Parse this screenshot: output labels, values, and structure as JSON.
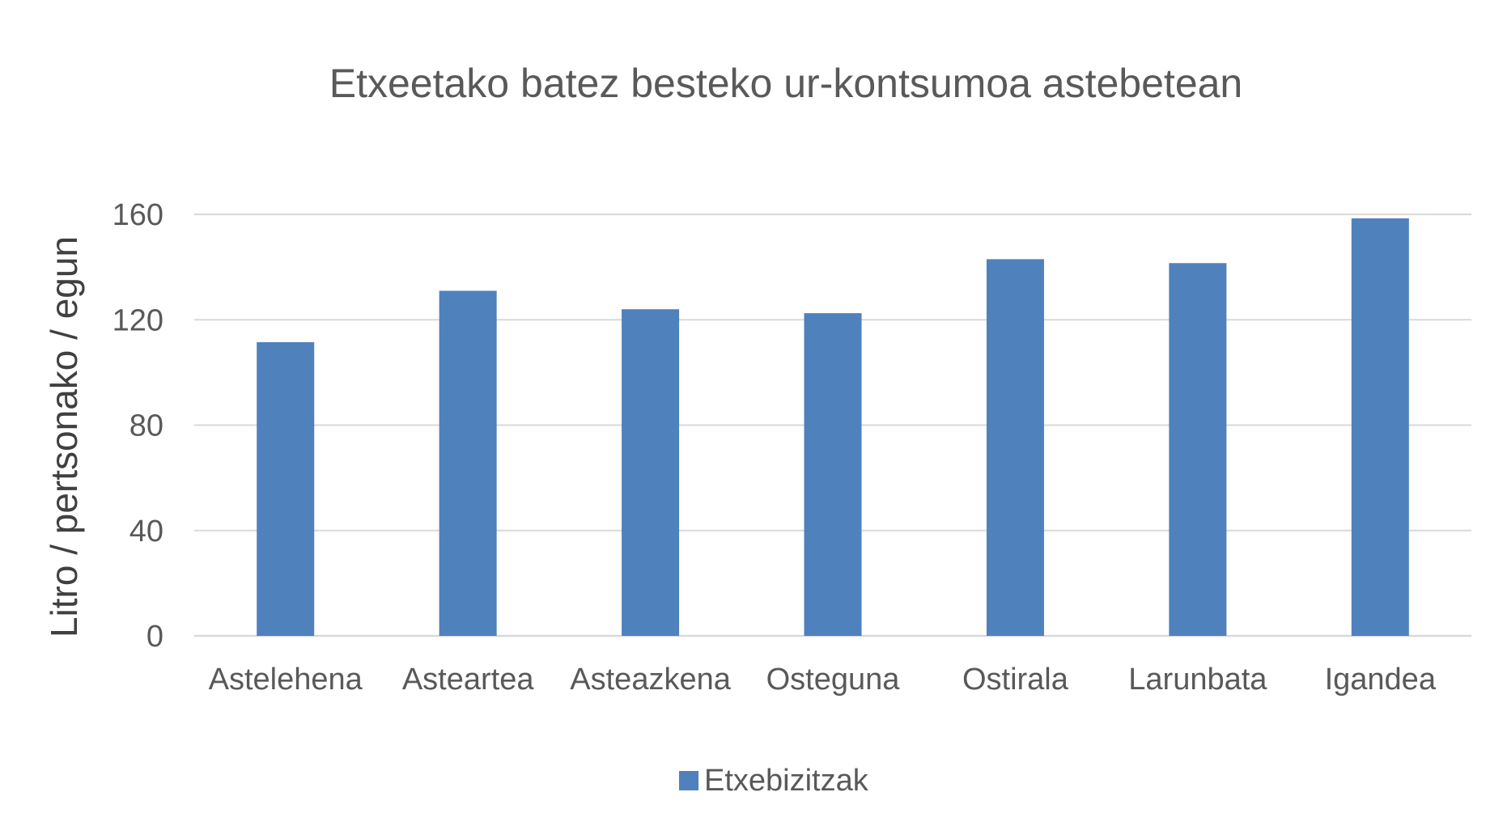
{
  "chart_data": {
    "type": "bar",
    "title": "Etxeetako batez besteko ur-kontsumoa astebetean",
    "xlabel": "",
    "ylabel": "Litro / pertsonako / egun",
    "categories": [
      "Astelehena",
      "Asteartea",
      "Asteazkena",
      "Osteguna",
      "Ostirala",
      "Larunbata",
      "Igandea"
    ],
    "series": [
      {
        "name": "Etxebizitzak",
        "color": "#4f81bd",
        "values": [
          111.5,
          131,
          124,
          122.5,
          143,
          141.5,
          158.5
        ]
      }
    ],
    "ylim": [
      0,
      160
    ],
    "yticks": [
      0,
      40,
      80,
      120,
      160
    ],
    "grid": true,
    "legend_position": "bottom"
  }
}
